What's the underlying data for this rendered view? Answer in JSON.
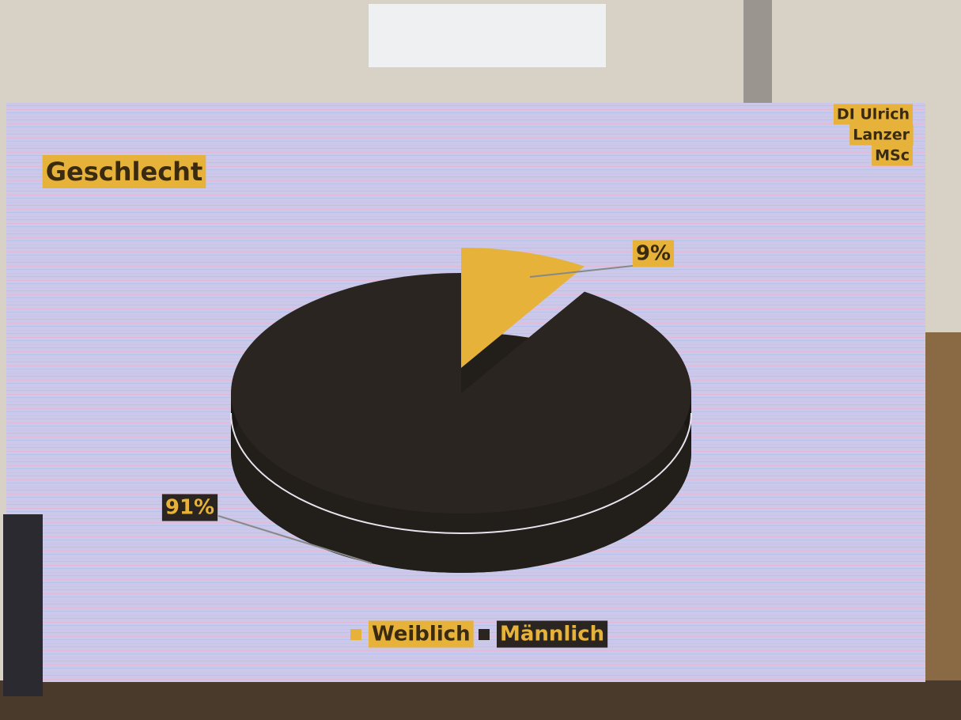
{
  "chart_data": {
    "type": "pie",
    "title": "Geschlecht",
    "author": [
      "DI Ulrich",
      "Lanzer",
      "MSc"
    ],
    "categories": [
      "Weiblich",
      "Männlich"
    ],
    "values": [
      9,
      91
    ],
    "value_labels": [
      "9%",
      "91%"
    ],
    "colors": [
      "#e6b23a",
      "#2a2520"
    ]
  }
}
